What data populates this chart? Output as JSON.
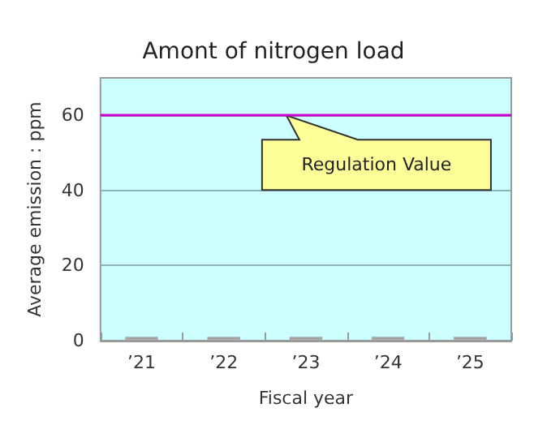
{
  "chart_data": {
    "type": "bar",
    "title": "Amont of nitrogen load",
    "xlabel": "Fiscal year",
    "ylabel": "Average emission : ppm",
    "categories": [
      "’21",
      "’22",
      "’23",
      "’24",
      "’25"
    ],
    "values": [
      1,
      1,
      1,
      1,
      1
    ],
    "color": "#a6a6a6",
    "ylim": [
      0,
      70
    ],
    "yticks": [
      0,
      20,
      40,
      60
    ],
    "grid": "y",
    "ref_lines": [
      {
        "axis": "y",
        "value": 60,
        "label": "Regulation Value",
        "color": "#cc00cc",
        "line_style": "solid"
      }
    ]
  }
}
